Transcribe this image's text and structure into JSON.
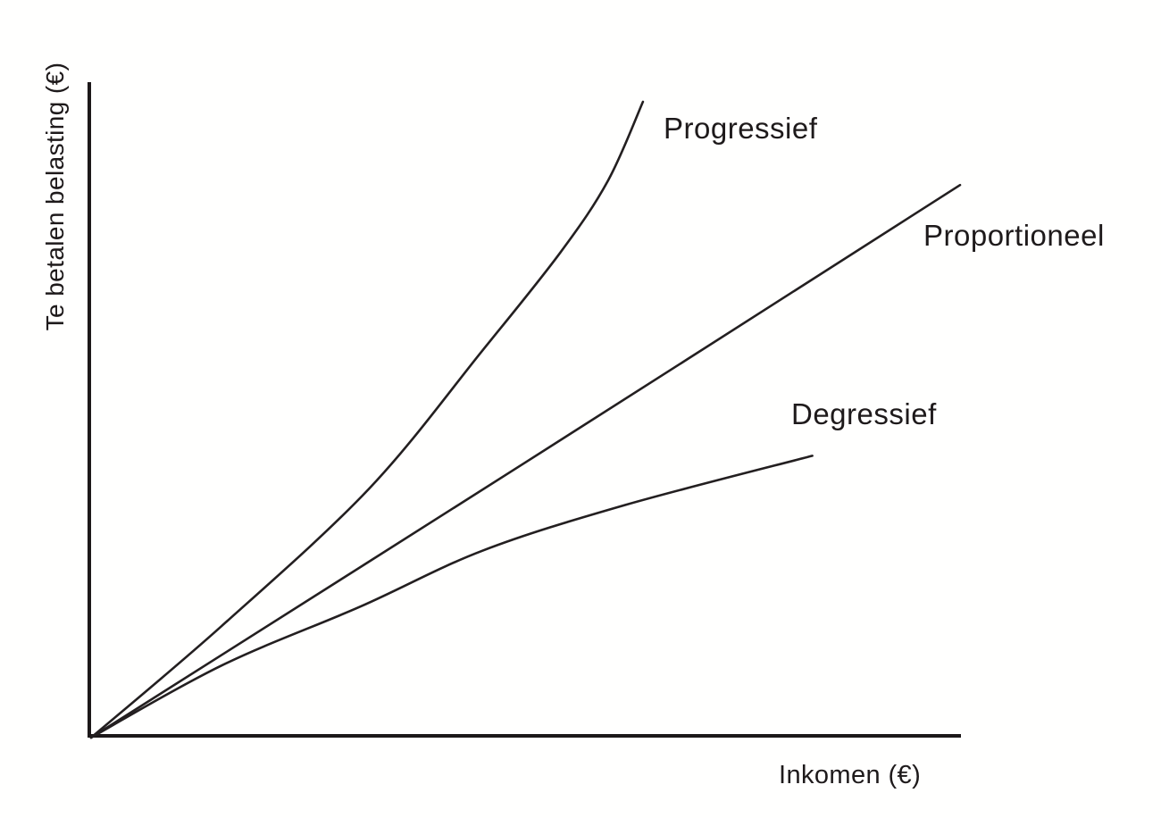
{
  "colors": {
    "background": "#fffffe",
    "line": "#231f20",
    "axis": "#1c1819",
    "text": "#1e1a1b"
  },
  "chart_data": {
    "type": "line",
    "title": "",
    "xlabel": "Inkomen (€)",
    "ylabel": "Te betalen belasting (€)",
    "x_range": [
      0,
      100
    ],
    "y_range": [
      0,
      100
    ],
    "grid": false,
    "axes_numeric": false,
    "legend_position": "inline-labels",
    "series": [
      {
        "name": "Progressief",
        "shape": "convex-increasing",
        "points": [
          [
            0,
            0
          ],
          [
            15,
            17
          ],
          [
            32,
            38
          ],
          [
            45,
            59
          ],
          [
            54,
            74
          ],
          [
            59.5,
            85
          ],
          [
            63.5,
            97
          ]
        ]
      },
      {
        "name": "Proportioneel",
        "shape": "linear",
        "points": [
          [
            0,
            0
          ],
          [
            50,
            42
          ],
          [
            100,
            84.3
          ]
        ]
      },
      {
        "name": "Degressief",
        "shape": "concave-increasing",
        "points": [
          [
            0,
            0
          ],
          [
            15,
            11
          ],
          [
            31,
            20
          ],
          [
            45,
            28.5
          ],
          [
            61.5,
            35.5
          ],
          [
            83,
            43
          ]
        ]
      }
    ]
  },
  "x_axis": {
    "label": "Inkomen (€)"
  },
  "y_axis": {
    "label": "Te betalen belasting (€)"
  }
}
